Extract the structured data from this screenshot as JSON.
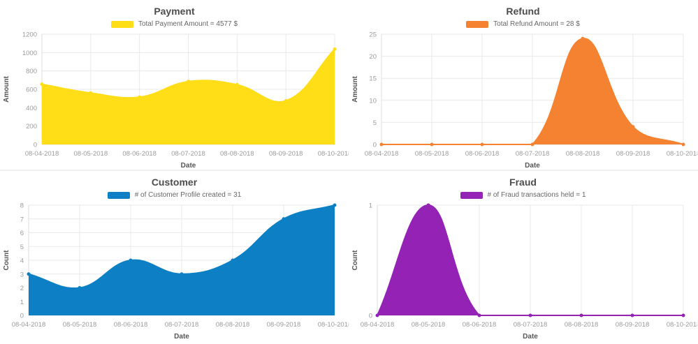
{
  "chart_data": [
    {
      "id": "payment",
      "type": "area",
      "title": "Payment",
      "legend": "Total Payment Amount = 4577 $",
      "color": "#FFDE17",
      "xlabel": "Date",
      "ylabel": "Amount",
      "categories": [
        "08-04-2018",
        "08-05-2018",
        "08-06-2018",
        "08-07-2018",
        "08-08-2018",
        "08-09-2018",
        "08-10-2018"
      ],
      "values": [
        655,
        560,
        515,
        685,
        650,
        475,
        1037
      ],
      "y_ticks": [
        0,
        200,
        400,
        600,
        800,
        1000,
        1200
      ],
      "ylim": [
        0,
        1200
      ],
      "grid": true,
      "legend_position": "top"
    },
    {
      "id": "refund",
      "type": "area",
      "title": "Refund",
      "legend": "Total Refund Amount = 28 $",
      "color": "#F58231",
      "xlabel": "Date",
      "ylabel": "Amount",
      "categories": [
        "08-04-2018",
        "08-05-2018",
        "08-06-2018",
        "08-07-2018",
        "08-08-2018",
        "08-09-2018",
        "08-10-2018"
      ],
      "values": [
        0,
        0,
        0,
        0,
        24,
        4,
        0
      ],
      "y_ticks": [
        0,
        5,
        10,
        15,
        20,
        25
      ],
      "ylim": [
        0,
        25
      ],
      "grid": true,
      "legend_position": "top"
    },
    {
      "id": "customer",
      "type": "area",
      "title": "Customer",
      "legend": "# of Customer Profile created = 31",
      "color": "#0D80C5",
      "xlabel": "Date",
      "ylabel": "Count",
      "categories": [
        "08-04-2018",
        "08-05-2018",
        "08-06-2018",
        "08-07-2018",
        "08-08-2018",
        "08-09-2018",
        "08-10-2018"
      ],
      "values": [
        3,
        2,
        4,
        3,
        4,
        7,
        8
      ],
      "y_ticks": [
        0,
        1,
        2,
        3,
        4,
        5,
        6,
        7,
        8
      ],
      "ylim": [
        0,
        8
      ],
      "grid": true,
      "legend_position": "top"
    },
    {
      "id": "fraud",
      "type": "area",
      "title": "Fraud",
      "legend": "# of Fraud transactions held = 1",
      "color": "#9322B5",
      "xlabel": "Date",
      "ylabel": "Count",
      "categories": [
        "08-04-2018",
        "08-05-2018",
        "08-06-2018",
        "08-07-2018",
        "08-08-2018",
        "08-09-2018",
        "08-10-2018"
      ],
      "values": [
        0,
        1,
        0,
        0,
        0,
        0,
        0
      ],
      "y_ticks": [
        0,
        1
      ],
      "ylim": [
        0,
        1
      ],
      "grid": true,
      "legend_position": "top"
    }
  ],
  "colors": {
    "title_text": "#4c4c4c",
    "legend_text": "#666666",
    "tick_text": "#9b9b9b",
    "axis_label_text": "#565656",
    "gridline": "#e9e9e9",
    "axis_line": "#dcdcdc",
    "divider": "#f1f1f1",
    "background": "#ffffff"
  }
}
